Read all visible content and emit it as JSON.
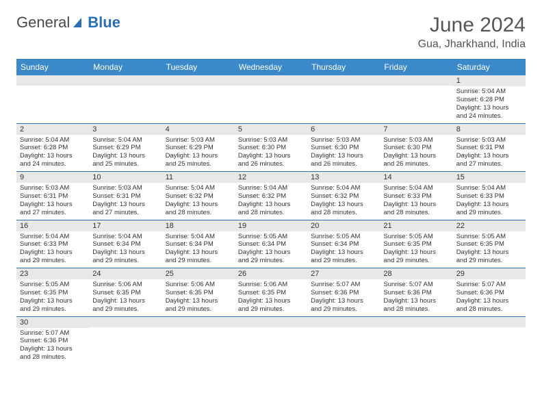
{
  "logo": {
    "text_gray": "General",
    "text_blue": "Blue"
  },
  "title": "June 2024",
  "location": "Gua, Jharkhand, India",
  "colors": {
    "header_bg": "#3b89c9",
    "header_fg": "#ffffff",
    "row_divider": "#2a6fb5",
    "daynum_bg": "#e8e8e8",
    "text": "#333333",
    "title_color": "#555555"
  },
  "typography": {
    "title_fontsize": 30,
    "location_fontsize": 16,
    "header_fontsize": 12,
    "daynum_fontsize": 11,
    "body_fontsize": 9.5
  },
  "day_headers": [
    "Sunday",
    "Monday",
    "Tuesday",
    "Wednesday",
    "Thursday",
    "Friday",
    "Saturday"
  ],
  "weeks": [
    [
      {
        "num": "",
        "lines": []
      },
      {
        "num": "",
        "lines": []
      },
      {
        "num": "",
        "lines": []
      },
      {
        "num": "",
        "lines": []
      },
      {
        "num": "",
        "lines": []
      },
      {
        "num": "",
        "lines": []
      },
      {
        "num": "1",
        "lines": [
          "Sunrise: 5:04 AM",
          "Sunset: 6:28 PM",
          "Daylight: 13 hours",
          "and 24 minutes."
        ]
      }
    ],
    [
      {
        "num": "2",
        "lines": [
          "Sunrise: 5:04 AM",
          "Sunset: 6:28 PM",
          "Daylight: 13 hours",
          "and 24 minutes."
        ]
      },
      {
        "num": "3",
        "lines": [
          "Sunrise: 5:04 AM",
          "Sunset: 6:29 PM",
          "Daylight: 13 hours",
          "and 25 minutes."
        ]
      },
      {
        "num": "4",
        "lines": [
          "Sunrise: 5:03 AM",
          "Sunset: 6:29 PM",
          "Daylight: 13 hours",
          "and 25 minutes."
        ]
      },
      {
        "num": "5",
        "lines": [
          "Sunrise: 5:03 AM",
          "Sunset: 6:30 PM",
          "Daylight: 13 hours",
          "and 26 minutes."
        ]
      },
      {
        "num": "6",
        "lines": [
          "Sunrise: 5:03 AM",
          "Sunset: 6:30 PM",
          "Daylight: 13 hours",
          "and 26 minutes."
        ]
      },
      {
        "num": "7",
        "lines": [
          "Sunrise: 5:03 AM",
          "Sunset: 6:30 PM",
          "Daylight: 13 hours",
          "and 26 minutes."
        ]
      },
      {
        "num": "8",
        "lines": [
          "Sunrise: 5:03 AM",
          "Sunset: 6:31 PM",
          "Daylight: 13 hours",
          "and 27 minutes."
        ]
      }
    ],
    [
      {
        "num": "9",
        "lines": [
          "Sunrise: 5:03 AM",
          "Sunset: 6:31 PM",
          "Daylight: 13 hours",
          "and 27 minutes."
        ]
      },
      {
        "num": "10",
        "lines": [
          "Sunrise: 5:03 AM",
          "Sunset: 6:31 PM",
          "Daylight: 13 hours",
          "and 27 minutes."
        ]
      },
      {
        "num": "11",
        "lines": [
          "Sunrise: 5:04 AM",
          "Sunset: 6:32 PM",
          "Daylight: 13 hours",
          "and 28 minutes."
        ]
      },
      {
        "num": "12",
        "lines": [
          "Sunrise: 5:04 AM",
          "Sunset: 6:32 PM",
          "Daylight: 13 hours",
          "and 28 minutes."
        ]
      },
      {
        "num": "13",
        "lines": [
          "Sunrise: 5:04 AM",
          "Sunset: 6:32 PM",
          "Daylight: 13 hours",
          "and 28 minutes."
        ]
      },
      {
        "num": "14",
        "lines": [
          "Sunrise: 5:04 AM",
          "Sunset: 6:33 PM",
          "Daylight: 13 hours",
          "and 28 minutes."
        ]
      },
      {
        "num": "15",
        "lines": [
          "Sunrise: 5:04 AM",
          "Sunset: 6:33 PM",
          "Daylight: 13 hours",
          "and 29 minutes."
        ]
      }
    ],
    [
      {
        "num": "16",
        "lines": [
          "Sunrise: 5:04 AM",
          "Sunset: 6:33 PM",
          "Daylight: 13 hours",
          "and 29 minutes."
        ]
      },
      {
        "num": "17",
        "lines": [
          "Sunrise: 5:04 AM",
          "Sunset: 6:34 PM",
          "Daylight: 13 hours",
          "and 29 minutes."
        ]
      },
      {
        "num": "18",
        "lines": [
          "Sunrise: 5:04 AM",
          "Sunset: 6:34 PM",
          "Daylight: 13 hours",
          "and 29 minutes."
        ]
      },
      {
        "num": "19",
        "lines": [
          "Sunrise: 5:05 AM",
          "Sunset: 6:34 PM",
          "Daylight: 13 hours",
          "and 29 minutes."
        ]
      },
      {
        "num": "20",
        "lines": [
          "Sunrise: 5:05 AM",
          "Sunset: 6:34 PM",
          "Daylight: 13 hours",
          "and 29 minutes."
        ]
      },
      {
        "num": "21",
        "lines": [
          "Sunrise: 5:05 AM",
          "Sunset: 6:35 PM",
          "Daylight: 13 hours",
          "and 29 minutes."
        ]
      },
      {
        "num": "22",
        "lines": [
          "Sunrise: 5:05 AM",
          "Sunset: 6:35 PM",
          "Daylight: 13 hours",
          "and 29 minutes."
        ]
      }
    ],
    [
      {
        "num": "23",
        "lines": [
          "Sunrise: 5:05 AM",
          "Sunset: 6:35 PM",
          "Daylight: 13 hours",
          "and 29 minutes."
        ]
      },
      {
        "num": "24",
        "lines": [
          "Sunrise: 5:06 AM",
          "Sunset: 6:35 PM",
          "Daylight: 13 hours",
          "and 29 minutes."
        ]
      },
      {
        "num": "25",
        "lines": [
          "Sunrise: 5:06 AM",
          "Sunset: 6:35 PM",
          "Daylight: 13 hours",
          "and 29 minutes."
        ]
      },
      {
        "num": "26",
        "lines": [
          "Sunrise: 5:06 AM",
          "Sunset: 6:35 PM",
          "Daylight: 13 hours",
          "and 29 minutes."
        ]
      },
      {
        "num": "27",
        "lines": [
          "Sunrise: 5:07 AM",
          "Sunset: 6:36 PM",
          "Daylight: 13 hours",
          "and 29 minutes."
        ]
      },
      {
        "num": "28",
        "lines": [
          "Sunrise: 5:07 AM",
          "Sunset: 6:36 PM",
          "Daylight: 13 hours",
          "and 28 minutes."
        ]
      },
      {
        "num": "29",
        "lines": [
          "Sunrise: 5:07 AM",
          "Sunset: 6:36 PM",
          "Daylight: 13 hours",
          "and 28 minutes."
        ]
      }
    ],
    [
      {
        "num": "30",
        "lines": [
          "Sunrise: 5:07 AM",
          "Sunset: 6:36 PM",
          "Daylight: 13 hours",
          "and 28 minutes."
        ]
      },
      {
        "num": "",
        "lines": []
      },
      {
        "num": "",
        "lines": []
      },
      {
        "num": "",
        "lines": []
      },
      {
        "num": "",
        "lines": []
      },
      {
        "num": "",
        "lines": []
      },
      {
        "num": "",
        "lines": []
      }
    ]
  ]
}
